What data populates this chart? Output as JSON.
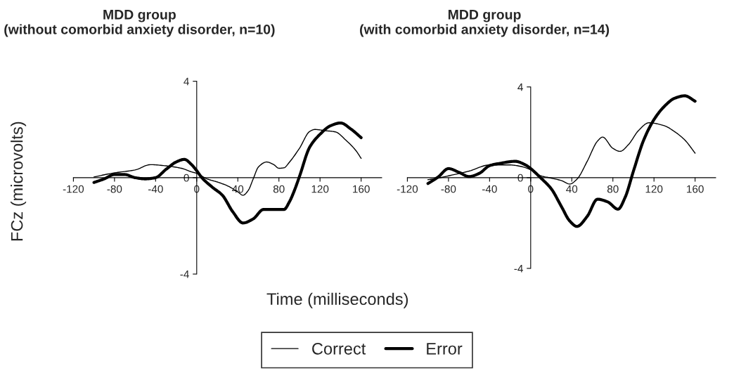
{
  "chart_data": [
    {
      "type": "line",
      "title": "MDD group\n(without comorbid anxiety disorder, n=10)",
      "ylabel": "FCz (microvolts)",
      "xlabel": "Time (milliseconds)",
      "xlim": [
        -120,
        180
      ],
      "xticks": [
        -120,
        -80,
        -40,
        0,
        40,
        80,
        120,
        160
      ],
      "ylim": [
        -4,
        4
      ],
      "yticks": [
        -4,
        0,
        4
      ],
      "grid": false,
      "legend": "bottom",
      "series": [
        {
          "name": "Correct",
          "color": "#000000",
          "x": [
            -100,
            -80,
            -60,
            -45,
            -30,
            -15,
            -5,
            0,
            10,
            20,
            30,
            40,
            45,
            50,
            55,
            60,
            68,
            75,
            80,
            85,
            90,
            100,
            110,
            115,
            125,
            135,
            145,
            155,
            160
          ],
          "values": [
            0.03,
            0.2,
            0.32,
            0.54,
            0.49,
            0.39,
            0.24,
            0.18,
            -0.05,
            -0.18,
            -0.34,
            -0.59,
            -0.73,
            -0.54,
            -0.05,
            0.44,
            0.65,
            0.54,
            0.39,
            0.41,
            0.63,
            1.22,
            1.92,
            2.0,
            1.95,
            1.9,
            1.56,
            1.12,
            0.8
          ]
        },
        {
          "name": "Error",
          "color": "#000000",
          "x": [
            -100,
            -90,
            -80,
            -70,
            -60,
            -50,
            -40,
            -30,
            -20,
            -12,
            -5,
            0,
            5,
            15,
            25,
            35,
            45,
            55,
            65,
            75,
            85,
            90,
            95,
            100,
            110,
            120,
            130,
            140,
            150,
            160
          ],
          "values": [
            -0.2,
            -0.05,
            0.13,
            0.13,
            0,
            -0.05,
            0,
            0.34,
            0.65,
            0.76,
            0.54,
            0.29,
            0,
            -0.39,
            -0.73,
            -1.41,
            -1.88,
            -1.71,
            -1.32,
            -1.32,
            -1.32,
            -1.02,
            -0.54,
            0.05,
            1.27,
            1.8,
            2.15,
            2.27,
            2.02,
            1.66
          ]
        }
      ]
    },
    {
      "type": "line",
      "title": "MDD group\n(with comorbid anxiety disorder, n=14)",
      "xlim": [
        -120,
        180
      ],
      "xticks": [
        -120,
        -80,
        -40,
        0,
        40,
        80,
        120,
        160
      ],
      "ylim": [
        -4,
        4
      ],
      "yticks": [
        -4,
        0,
        4
      ],
      "grid": false,
      "series": [
        {
          "name": "Correct",
          "color": "#000000",
          "x": [
            -100,
            -90,
            -80,
            -60,
            -40,
            -20,
            -10,
            0,
            10,
            20,
            30,
            38,
            45,
            55,
            65,
            70,
            80,
            87,
            95,
            105,
            115,
            130,
            140,
            150,
            160
          ],
          "values": [
            -0.09,
            -0.02,
            0.08,
            0.29,
            0.56,
            0.56,
            0.5,
            0.35,
            0.08,
            -0.02,
            -0.13,
            -0.28,
            -0.07,
            0.72,
            1.61,
            1.79,
            1.29,
            1.16,
            1.45,
            2.08,
            2.42,
            2.29,
            2.03,
            1.66,
            1.08
          ]
        },
        {
          "name": "Error",
          "color": "#000000",
          "x": [
            -100,
            -90,
            -80,
            -70,
            -60,
            -50,
            -40,
            -30,
            -15,
            -5,
            0,
            10,
            20,
            30,
            38,
            45,
            55,
            65,
            75,
            85,
            92,
            100,
            110,
            120,
            130,
            140,
            150,
            160
          ],
          "values": [
            -0.26,
            0.03,
            0.4,
            0.24,
            0.05,
            0.19,
            0.53,
            0.63,
            0.72,
            0.56,
            0.4,
            -0.02,
            -0.49,
            -1.28,
            -1.91,
            -2.15,
            -1.71,
            -0.95,
            -1.07,
            -1.39,
            -0.86,
            0.29,
            1.66,
            2.56,
            3.14,
            3.5,
            3.61,
            3.37
          ]
        }
      ]
    }
  ]
}
